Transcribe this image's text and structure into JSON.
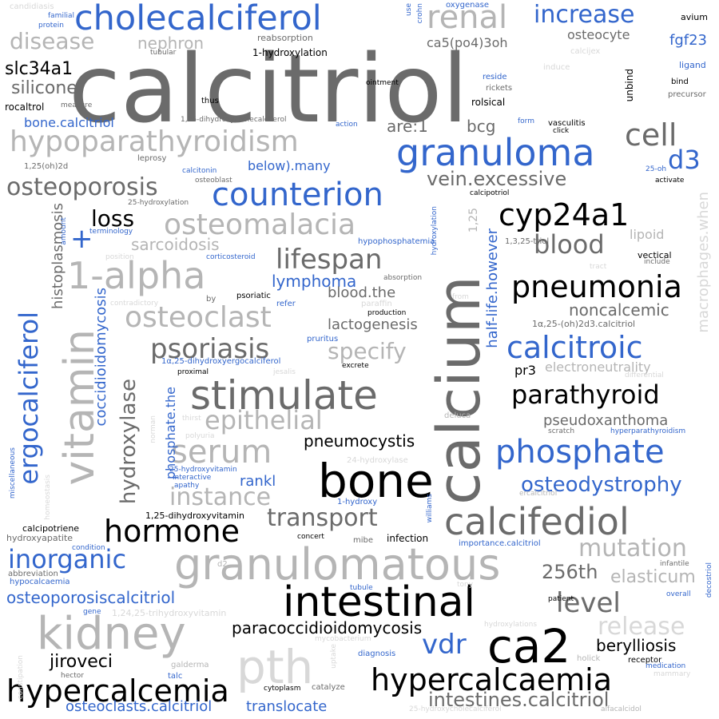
{
  "words": [
    "calcitriol",
    "calcium",
    "cholecalciferol",
    "granuloma",
    "counterion",
    "cyp24a1",
    "hypoparathyroidism",
    "osteoporosis",
    "1-alpha",
    "osteomalacia",
    "lifespan",
    "pneumonia",
    "stimulate",
    "psoriasis",
    "calcitroic",
    "parathyroid",
    "phosphate",
    "bone",
    "ca2",
    "intestinal",
    "kidney",
    "pth",
    "hypercalcemia",
    "hypercalcaemia",
    "granulomatous",
    "calcifediol",
    "hormone",
    "inorganic",
    "vitamin",
    "ergocalciferol",
    "serum",
    "instance",
    "epithelial",
    "renal",
    "increase",
    "cell",
    "d3",
    "blood",
    "disease",
    "nephron",
    "slc34a1",
    "silicone",
    "loss",
    "sarcoidosis",
    "lymphoma",
    "osteoclast",
    "specify",
    "transport",
    "mutation",
    "osteodystrophy",
    "release",
    "level",
    "vdr",
    "jiroveci",
    "berylliosis",
    "paracoccidioidomycosis",
    "pneumocystis",
    "rankl",
    "256th",
    "elasticum",
    "intestines.calcitriol",
    "osteoclasts.calcitriol",
    "translocate",
    "osteoporosiscalcitriol",
    "half-life.however",
    "coccidioidomycosis",
    "histoplasmosis",
    "hydroxylase",
    "phosphate.the",
    "macrophages.when",
    "vein.excessive",
    "are:1",
    "bcg",
    "fgf23",
    "osteocyte",
    "ca5(po4)3oh",
    "noncalcemic",
    "lactogenesis",
    "blood.the",
    "pseudoxanthoma",
    "electroneutrality",
    "pr3",
    "1α,25-(oh)2d3.calcitriol",
    "lipoid",
    "vectical",
    "1,25",
    "below).many",
    "bone.calcitriol",
    "rocaltrol",
    "thus",
    "1-hydroxylation",
    "reabsorption",
    "tubular",
    "rolsical",
    "rickets",
    "reside",
    "ointment",
    "unbind",
    "avium",
    "ligand",
    "bind",
    "precursor",
    "calcijex",
    "induce",
    "oxygenase",
    "crohn",
    "use",
    "candidiasis",
    "familial",
    "protein",
    "measure",
    "1,25-dihydroxycholecalciferol",
    "action",
    "form",
    "vasculitis",
    "click",
    "leprosy",
    "1,25(oh)2d",
    "osteoblast",
    "calcitonin",
    "25-oh",
    "activate",
    "calcipotriol",
    "25-hydroxylation",
    "terminology",
    "amount",
    "hypophosphatemia",
    "hydroxylation",
    "1,3,25-triol",
    "corticosteroid",
    "include",
    "tract",
    "position",
    "absorption",
    "psoriatic",
    "by",
    "paraffin",
    "production",
    "contradictory",
    "refer",
    "from",
    "pruritus",
    "1α,25-dihydroxyergocalciferol",
    "excrete",
    "proximal",
    "jesalis",
    "differential",
    "thirst",
    "norman",
    "deluca",
    "scratch",
    "hyperparathyroidism",
    "polyuria",
    "24-hydroxylase",
    "25-hydroxyvitamin",
    "interactive",
    "apathy",
    "miscellaneous",
    "homeostasis",
    "williams",
    "1-hydroxy",
    "ercalcitriol",
    "1,25-dihydroxyvitamin",
    "calcipotriene",
    "hydroxyapatite",
    "condition",
    "concert",
    "mibe",
    "infection",
    "importance.calcitriol",
    "infantile",
    "abbreviation",
    "d2",
    "hypocalcaemia",
    "tubule",
    "tony",
    "patient",
    "overall",
    "decostriol",
    "gene",
    "1,24,25-trihydroxyvitamin",
    "mycobacterium",
    "hydroxylations",
    "constipation",
    "uptake",
    "diagnosis",
    "holick",
    "receptor",
    "medication",
    "galderma",
    "mammary",
    "hector",
    "talc",
    "cytoplasm",
    "catalyze",
    "25-hydroxycholecalciferol",
    "alfacalcidol",
    "+"
  ]
}
